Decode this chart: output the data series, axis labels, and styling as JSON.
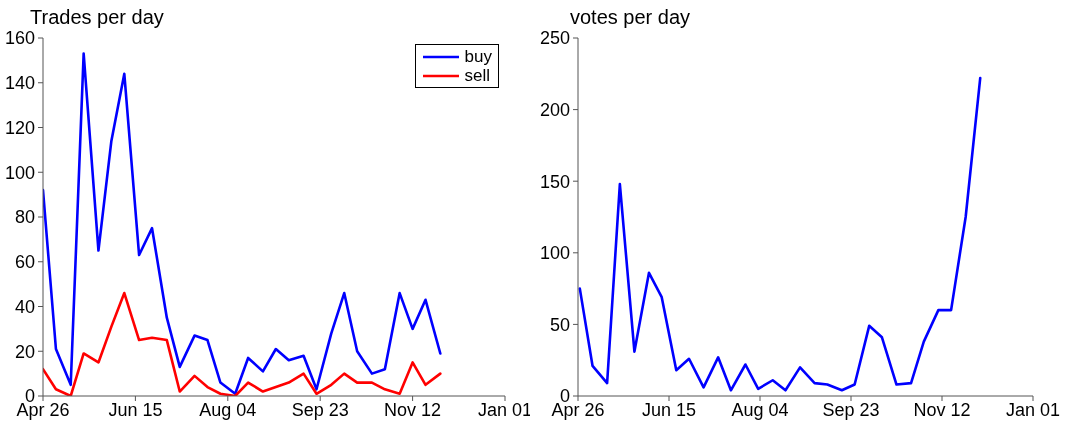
{
  "chart_data": [
    {
      "type": "line",
      "title": "Trades per day",
      "x": [
        "--04-26",
        "--05-03",
        "--05-11",
        "--05-18",
        "--05-26",
        "--06-02",
        "--06-09",
        "--06-17",
        "--06-24",
        "--07-02",
        "--07-09",
        "--07-17",
        "--07-24",
        "--07-31",
        "--08-08",
        "--08-15",
        "--08-23",
        "--08-30",
        "--09-06",
        "--09-14",
        "--09-21",
        "--09-29",
        "--10-06",
        "--10-13",
        "--10-21",
        "--10-28",
        "--11-05",
        "--11-12",
        "--11-19",
        "--11-27"
      ],
      "series": [
        {
          "name": "buy",
          "color": "#0000ff",
          "values": [
            92,
            21,
            5,
            153,
            65,
            114,
            144,
            63,
            75,
            35,
            13,
            27,
            25,
            6,
            1,
            17,
            11,
            21,
            16,
            18,
            3,
            28,
            46,
            20,
            10,
            12,
            46,
            30,
            43,
            19
          ]
        },
        {
          "name": "sell",
          "color": "#ff0000",
          "values": [
            12,
            3,
            0,
            19,
            15,
            31,
            46,
            25,
            26,
            25,
            2,
            9,
            4,
            1,
            0,
            6,
            2,
            4,
            6,
            10,
            1,
            5,
            10,
            6,
            6,
            3,
            1,
            15,
            5,
            10
          ]
        }
      ],
      "xlim": [
        "--04-26",
        "2002-01-01"
      ],
      "xticks": [
        {
          "value": "--04-26",
          "label": "Apr 26"
        },
        {
          "value": "--06-15",
          "label": "Jun 15"
        },
        {
          "value": "--08-04",
          "label": "Aug 04"
        },
        {
          "value": "--09-23",
          "label": "Sep 23"
        },
        {
          "value": "--11-12",
          "label": "Nov 12"
        },
        {
          "value": "2002-01-01",
          "label": "Jan 01"
        }
      ],
      "ylim": [
        0,
        160
      ],
      "yticks": [
        0,
        20,
        40,
        60,
        80,
        100,
        120,
        140,
        160
      ],
      "legend": "top right"
    },
    {
      "type": "line",
      "title": "votes per day",
      "x": [
        "--04-27",
        "--05-04",
        "--05-12",
        "--05-19",
        "--05-27",
        "--06-04",
        "--06-11",
        "--06-19",
        "--06-26",
        "--07-04",
        "--07-12",
        "--07-19",
        "--07-27",
        "--08-03",
        "--08-11",
        "--08-18",
        "--08-26",
        "--09-03",
        "--09-10",
        "--09-18",
        "--09-25",
        "--10-03",
        "--10-10",
        "--10-18",
        "--10-26",
        "--11-02",
        "--11-10",
        "--11-17",
        "--11-25",
        "--12-03"
      ],
      "series": [
        {
          "color": "#0000ff",
          "values": [
            75,
            21,
            9,
            148,
            31,
            86,
            69,
            18,
            26,
            6,
            27,
            4,
            22,
            5,
            11,
            4,
            20,
            9,
            8,
            4,
            8,
            49,
            41,
            8,
            9,
            38,
            60,
            60,
            125,
            222
          ]
        }
      ],
      "xlim": [
        "--04-26",
        "2002-01-01"
      ],
      "xticks": [
        {
          "value": "--04-26",
          "label": "Apr 26"
        },
        {
          "value": "--06-15",
          "label": "Jun 15"
        },
        {
          "value": "--08-04",
          "label": "Aug 04"
        },
        {
          "value": "--09-23",
          "label": "Sep 23"
        },
        {
          "value": "--11-12",
          "label": "Nov 12"
        },
        {
          "value": "2002-01-01",
          "label": "Jan 01"
        }
      ],
      "ylim": [
        0,
        250
      ],
      "yticks": [
        0,
        50,
        100,
        150,
        200,
        250
      ]
    }
  ]
}
